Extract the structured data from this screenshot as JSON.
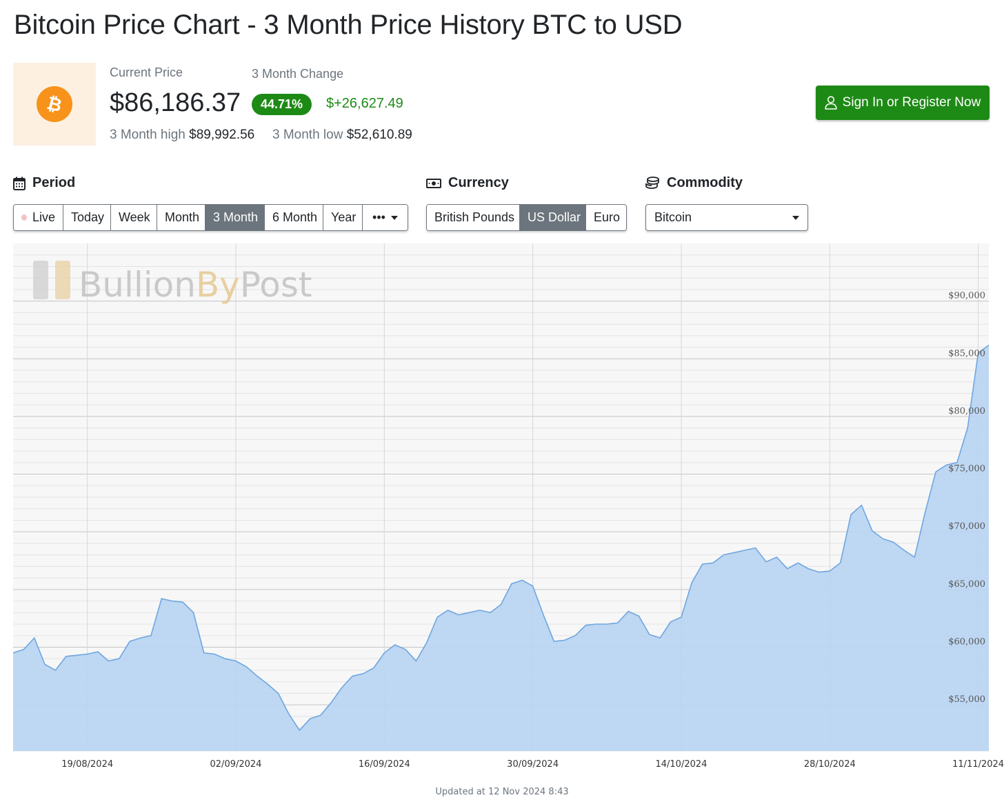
{
  "page": {
    "title": "Bitcoin Price Chart - 3 Month Price History BTC to USD"
  },
  "summary": {
    "current_price_label": "Current Price",
    "current_price": "$86,186.37",
    "change_label": "3 Month Change",
    "change_percent": "44.71%",
    "change_amount": "$+26,627.49",
    "high_label": "3 Month high",
    "high_value": "$89,992.56",
    "low_label": "3 Month low",
    "low_value": "$52,610.89"
  },
  "cta": {
    "label": "Sign In or Register Now"
  },
  "period": {
    "heading": "Period",
    "options": [
      "Live",
      "Today",
      "Week",
      "Month",
      "3 Month",
      "6 Month",
      "Year",
      "•••"
    ],
    "active": "3 Month"
  },
  "currency": {
    "heading": "Currency",
    "options": [
      "British Pounds",
      "US Dollar",
      "Euro"
    ],
    "active": "US Dollar"
  },
  "commodity": {
    "heading": "Commodity",
    "selected": "Bitcoin"
  },
  "watermark": {
    "part1": "Bullion",
    "part2": "By",
    "part3": "Post"
  },
  "footer": {
    "updated": "Updated at 12 Nov 2024 8:43"
  },
  "colors": {
    "accent_green": "#1e8a16",
    "bitcoin_orange": "#f7931a",
    "line": "#6ea6e0",
    "fill": "#b9d4f1",
    "active_button": "#6c757d"
  },
  "chart_data": {
    "type": "area",
    "title": "",
    "xlabel": "",
    "ylabel": "",
    "x_range": [
      "2024-08-12",
      "2024-11-12"
    ],
    "ylim": [
      51000,
      95000
    ],
    "y_ticks": [
      55000,
      60000,
      65000,
      70000,
      75000,
      80000,
      85000,
      90000
    ],
    "y_tick_labels": [
      "$55,000",
      "$60,000",
      "$65,000",
      "$70,000",
      "$75,000",
      "$80,000",
      "$85,000",
      "$90,000"
    ],
    "x_ticks": [
      "2024-08-19",
      "2024-09-02",
      "2024-09-16",
      "2024-09-30",
      "2024-10-14",
      "2024-10-28",
      "2024-11-11"
    ],
    "x_tick_labels": [
      "19/08/2024",
      "02/09/2024",
      "16/09/2024",
      "30/09/2024",
      "14/10/2024",
      "28/10/2024",
      "11/11/2024"
    ],
    "grid": true,
    "series": [
      {
        "name": "",
        "x": [
          "2024-08-12",
          "2024-08-13",
          "2024-08-14",
          "2024-08-15",
          "2024-08-16",
          "2024-08-17",
          "2024-08-18",
          "2024-08-19",
          "2024-08-20",
          "2024-08-21",
          "2024-08-22",
          "2024-08-23",
          "2024-08-24",
          "2024-08-25",
          "2024-08-26",
          "2024-08-27",
          "2024-08-28",
          "2024-08-29",
          "2024-08-30",
          "2024-08-31",
          "2024-09-01",
          "2024-09-02",
          "2024-09-03",
          "2024-09-04",
          "2024-09-05",
          "2024-09-06",
          "2024-09-07",
          "2024-09-08",
          "2024-09-09",
          "2024-09-10",
          "2024-09-11",
          "2024-09-12",
          "2024-09-13",
          "2024-09-14",
          "2024-09-15",
          "2024-09-16",
          "2024-09-17",
          "2024-09-18",
          "2024-09-19",
          "2024-09-20",
          "2024-09-21",
          "2024-09-22",
          "2024-09-23",
          "2024-09-24",
          "2024-09-25",
          "2024-09-26",
          "2024-09-27",
          "2024-09-28",
          "2024-09-29",
          "2024-09-30",
          "2024-10-01",
          "2024-10-02",
          "2024-10-03",
          "2024-10-04",
          "2024-10-05",
          "2024-10-06",
          "2024-10-07",
          "2024-10-08",
          "2024-10-09",
          "2024-10-10",
          "2024-10-11",
          "2024-10-12",
          "2024-10-13",
          "2024-10-14",
          "2024-10-15",
          "2024-10-16",
          "2024-10-17",
          "2024-10-18",
          "2024-10-19",
          "2024-10-20",
          "2024-10-21",
          "2024-10-22",
          "2024-10-23",
          "2024-10-24",
          "2024-10-25",
          "2024-10-26",
          "2024-10-27",
          "2024-10-28",
          "2024-10-29",
          "2024-10-30",
          "2024-10-31",
          "2024-11-01",
          "2024-11-02",
          "2024-11-03",
          "2024-11-04",
          "2024-11-05",
          "2024-11-06",
          "2024-11-07",
          "2024-11-08",
          "2024-11-09",
          "2024-11-10",
          "2024-11-11",
          "2024-11-12"
        ],
        "values": [
          59500,
          59800,
          60800,
          58500,
          58000,
          59200,
          59300,
          59400,
          59600,
          58800,
          59000,
          60500,
          60800,
          61000,
          64200,
          64000,
          63900,
          63000,
          59500,
          59400,
          59000,
          58800,
          58300,
          57500,
          56800,
          56000,
          54200,
          52800,
          53800,
          54100,
          55200,
          56500,
          57500,
          57700,
          58200,
          59500,
          60200,
          59800,
          58800,
          60400,
          62600,
          63200,
          62800,
          63000,
          63200,
          63000,
          63700,
          65500,
          65800,
          65300,
          62800,
          60500,
          60600,
          61000,
          61900,
          62000,
          62000,
          62100,
          63100,
          62700,
          61100,
          60800,
          62200,
          62600,
          65600,
          67200,
          67300,
          68000,
          68200,
          68400,
          68600,
          67400,
          67800,
          66800,
          67300,
          66800,
          66500,
          66600,
          67300,
          71500,
          72300,
          70100,
          69400,
          69100,
          68400,
          67800,
          71700,
          75200,
          75800,
          76000,
          79000,
          85500,
          86186
        ]
      }
    ]
  }
}
